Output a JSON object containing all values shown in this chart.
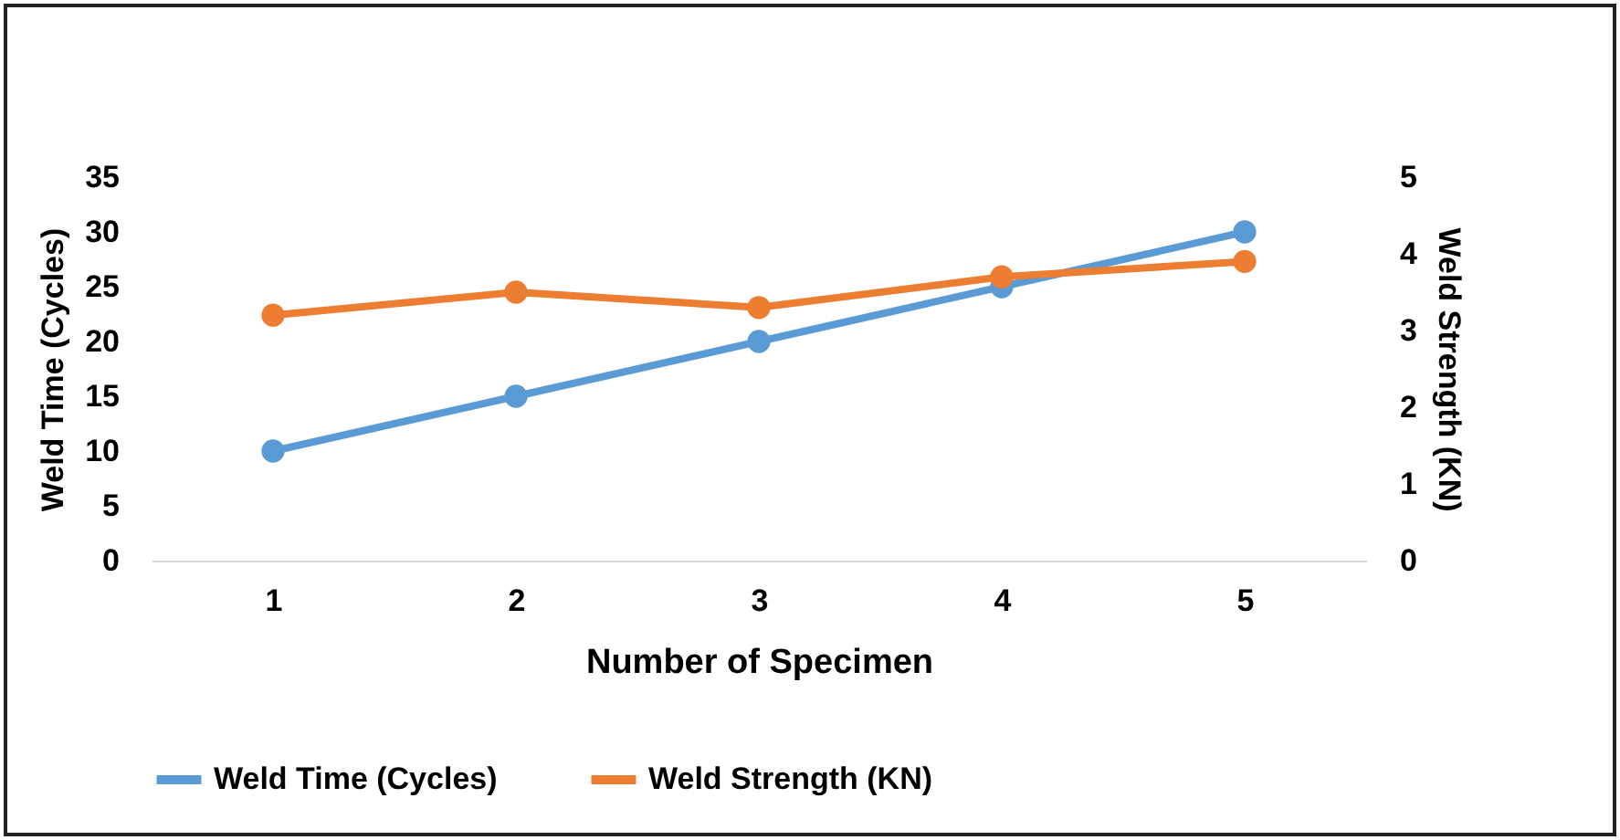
{
  "chart_data": {
    "type": "line",
    "xlabel": "Number of Specimen",
    "ylabel": "Weld Time (Cycles)",
    "y2label": "Weld Strength (KN)",
    "categories": [
      "1",
      "2",
      "3",
      "4",
      "5"
    ],
    "series": [
      {
        "name": "Weld Time (Cycles)",
        "color": "#5b9bd5",
        "values": [
          10,
          15,
          20,
          25,
          30
        ]
      },
      {
        "name": "Weld Strength (KN)",
        "color": "#ed7d31",
        "axis": "y2",
        "values": [
          3.2,
          3.5,
          3.3,
          3.7,
          3.9
        ]
      }
    ],
    "ylim": [
      0,
      35
    ],
    "yticks": [
      0,
      5,
      10,
      15,
      20,
      25,
      30,
      35
    ],
    "y2lim": [
      0,
      5
    ],
    "y2ticks": [
      0,
      1,
      2,
      3,
      4,
      5
    ],
    "grid": false,
    "legend": "bottom",
    "marker": "circle",
    "line_style": "solid"
  }
}
